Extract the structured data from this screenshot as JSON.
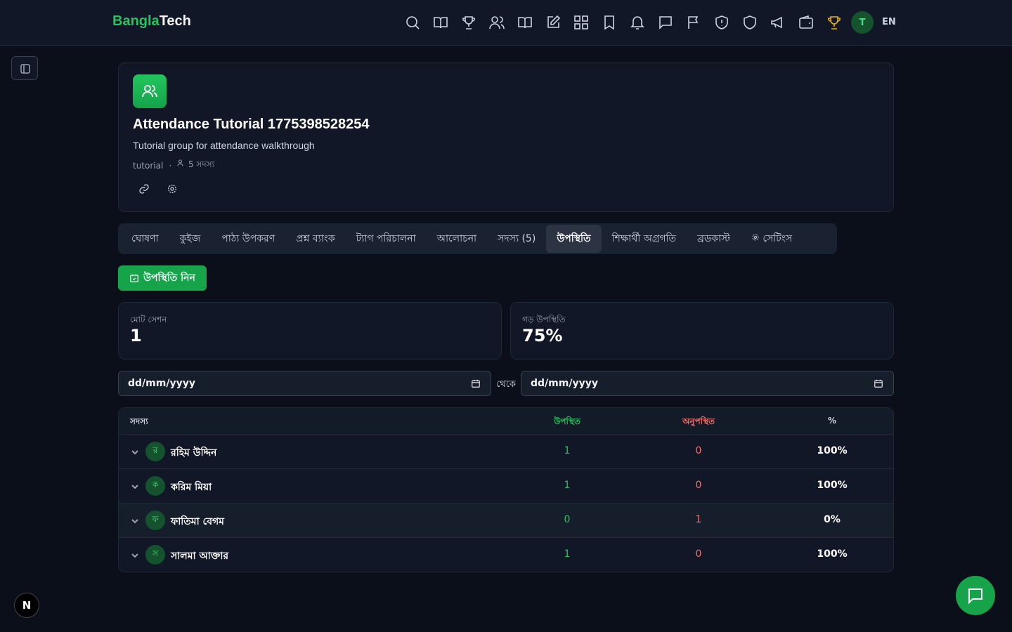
{
  "header": {
    "brand_a": "Bangla",
    "brand_b": "Tech",
    "avatar": "T",
    "lang": "EN"
  },
  "group": {
    "title": "Attendance Tutorial 1775398528254",
    "description": "Tutorial group for attendance walkthrough",
    "tag": "tutorial",
    "separator": "·",
    "members": "5 সদস্য"
  },
  "tabs": [
    "ঘোষণা",
    "কুইজ",
    "পাঠ্য উপকরণ",
    "প্রশ্ন ব্যাংক",
    "ট্যাগ পরিচালনা",
    "আলোচনা",
    "সদস্য (5)",
    "উপস্থিতি",
    "শিক্ষার্থী অগ্রগতি",
    "ব্রডকাস্ট",
    "সেটিংস"
  ],
  "take_attendance": "উপস্থিতি নিন",
  "stats": [
    {
      "label": "মোট সেশন",
      "value": "1"
    },
    {
      "label": "গড় উপস্থিতি",
      "value": "75%"
    }
  ],
  "date_filter": {
    "from": "dd/mm/yyyy",
    "separator": "থেকে",
    "to": "dd/mm/yyyy"
  },
  "table": {
    "columns": [
      "সদস্য",
      "উপস্থিত",
      "অনুপস্থিত",
      "%"
    ],
    "rows": [
      [
        "র",
        "রহিম উদ্দিন",
        "1",
        "0",
        "100%"
      ],
      [
        "ক",
        "করিম মিয়া",
        "1",
        "0",
        "100%"
      ],
      [
        "ফ",
        "ফাতিমা বেগম",
        "0",
        "1",
        "0%"
      ],
      [
        "স",
        "সালমা আক্তার",
        "1",
        "0",
        "100%"
      ]
    ]
  },
  "next_badge": "N"
}
